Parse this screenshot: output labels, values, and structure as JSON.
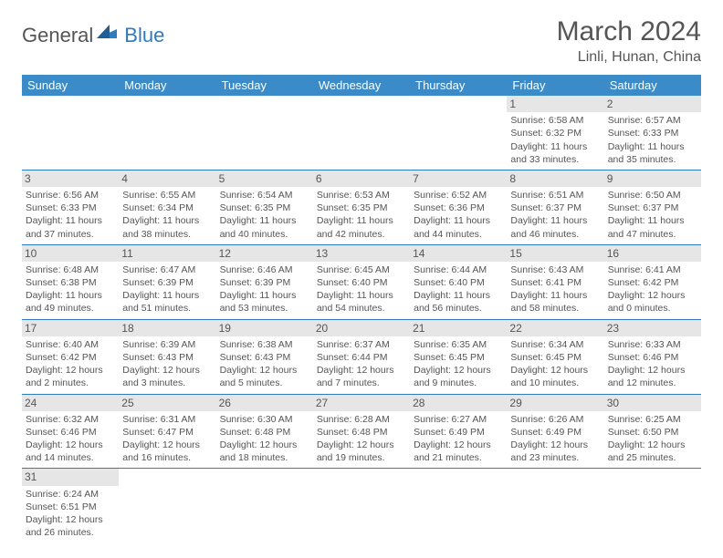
{
  "logo": {
    "text1": "General",
    "text2": "Blue"
  },
  "title": "March 2024",
  "location": "Linli, Hunan, China",
  "colors": {
    "header_bg": "#3b8bc9",
    "header_text": "#ffffff",
    "row_divider": "#2f7bbf",
    "daynum_bg": "#e6e6e6",
    "body_text": "#555555",
    "page_bg": "#ffffff"
  },
  "weekdays": [
    "Sunday",
    "Monday",
    "Tuesday",
    "Wednesday",
    "Thursday",
    "Friday",
    "Saturday"
  ],
  "weeks": [
    [
      null,
      null,
      null,
      null,
      null,
      {
        "n": 1,
        "sr": "6:58 AM",
        "ss": "6:32 PM",
        "dl": "11 hours and 33 minutes."
      },
      {
        "n": 2,
        "sr": "6:57 AM",
        "ss": "6:33 PM",
        "dl": "11 hours and 35 minutes."
      }
    ],
    [
      {
        "n": 3,
        "sr": "6:56 AM",
        "ss": "6:33 PM",
        "dl": "11 hours and 37 minutes."
      },
      {
        "n": 4,
        "sr": "6:55 AM",
        "ss": "6:34 PM",
        "dl": "11 hours and 38 minutes."
      },
      {
        "n": 5,
        "sr": "6:54 AM",
        "ss": "6:35 PM",
        "dl": "11 hours and 40 minutes."
      },
      {
        "n": 6,
        "sr": "6:53 AM",
        "ss": "6:35 PM",
        "dl": "11 hours and 42 minutes."
      },
      {
        "n": 7,
        "sr": "6:52 AM",
        "ss": "6:36 PM",
        "dl": "11 hours and 44 minutes."
      },
      {
        "n": 8,
        "sr": "6:51 AM",
        "ss": "6:37 PM",
        "dl": "11 hours and 46 minutes."
      },
      {
        "n": 9,
        "sr": "6:50 AM",
        "ss": "6:37 PM",
        "dl": "11 hours and 47 minutes."
      }
    ],
    [
      {
        "n": 10,
        "sr": "6:48 AM",
        "ss": "6:38 PM",
        "dl": "11 hours and 49 minutes."
      },
      {
        "n": 11,
        "sr": "6:47 AM",
        "ss": "6:39 PM",
        "dl": "11 hours and 51 minutes."
      },
      {
        "n": 12,
        "sr": "6:46 AM",
        "ss": "6:39 PM",
        "dl": "11 hours and 53 minutes."
      },
      {
        "n": 13,
        "sr": "6:45 AM",
        "ss": "6:40 PM",
        "dl": "11 hours and 54 minutes."
      },
      {
        "n": 14,
        "sr": "6:44 AM",
        "ss": "6:40 PM",
        "dl": "11 hours and 56 minutes."
      },
      {
        "n": 15,
        "sr": "6:43 AM",
        "ss": "6:41 PM",
        "dl": "11 hours and 58 minutes."
      },
      {
        "n": 16,
        "sr": "6:41 AM",
        "ss": "6:42 PM",
        "dl": "12 hours and 0 minutes."
      }
    ],
    [
      {
        "n": 17,
        "sr": "6:40 AM",
        "ss": "6:42 PM",
        "dl": "12 hours and 2 minutes."
      },
      {
        "n": 18,
        "sr": "6:39 AM",
        "ss": "6:43 PM",
        "dl": "12 hours and 3 minutes."
      },
      {
        "n": 19,
        "sr": "6:38 AM",
        "ss": "6:43 PM",
        "dl": "12 hours and 5 minutes."
      },
      {
        "n": 20,
        "sr": "6:37 AM",
        "ss": "6:44 PM",
        "dl": "12 hours and 7 minutes."
      },
      {
        "n": 21,
        "sr": "6:35 AM",
        "ss": "6:45 PM",
        "dl": "12 hours and 9 minutes."
      },
      {
        "n": 22,
        "sr": "6:34 AM",
        "ss": "6:45 PM",
        "dl": "12 hours and 10 minutes."
      },
      {
        "n": 23,
        "sr": "6:33 AM",
        "ss": "6:46 PM",
        "dl": "12 hours and 12 minutes."
      }
    ],
    [
      {
        "n": 24,
        "sr": "6:32 AM",
        "ss": "6:46 PM",
        "dl": "12 hours and 14 minutes."
      },
      {
        "n": 25,
        "sr": "6:31 AM",
        "ss": "6:47 PM",
        "dl": "12 hours and 16 minutes."
      },
      {
        "n": 26,
        "sr": "6:30 AM",
        "ss": "6:48 PM",
        "dl": "12 hours and 18 minutes."
      },
      {
        "n": 27,
        "sr": "6:28 AM",
        "ss": "6:48 PM",
        "dl": "12 hours and 19 minutes."
      },
      {
        "n": 28,
        "sr": "6:27 AM",
        "ss": "6:49 PM",
        "dl": "12 hours and 21 minutes."
      },
      {
        "n": 29,
        "sr": "6:26 AM",
        "ss": "6:49 PM",
        "dl": "12 hours and 23 minutes."
      },
      {
        "n": 30,
        "sr": "6:25 AM",
        "ss": "6:50 PM",
        "dl": "12 hours and 25 minutes."
      }
    ],
    [
      {
        "n": 31,
        "sr": "6:24 AM",
        "ss": "6:51 PM",
        "dl": "12 hours and 26 minutes."
      },
      null,
      null,
      null,
      null,
      null,
      null
    ]
  ],
  "labels": {
    "sunrise": "Sunrise:",
    "sunset": "Sunset:",
    "daylight": "Daylight:"
  }
}
